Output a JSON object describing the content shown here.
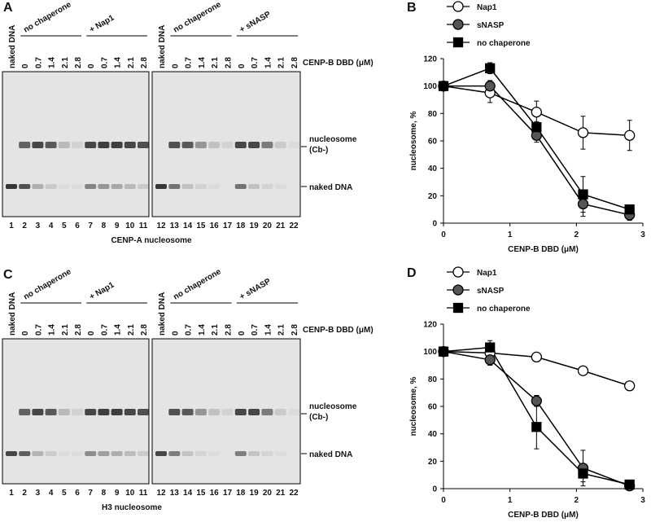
{
  "gels": [
    {
      "panel_label": "A",
      "lane_headers": [
        "naked DNA",
        "0",
        "0.7",
        "1.4",
        "2.1",
        "2.8",
        "0",
        "0.7",
        "1.4",
        "2.1",
        "2.8",
        "naked DNA",
        "0",
        "0.7",
        "1.4",
        "2.1",
        "2.8",
        "0",
        "0.7",
        "1.4",
        "2.1",
        "2.8"
      ],
      "groups": [
        "no chaperone",
        "+ Nap1",
        "no chaperone",
        "+ sNASP"
      ],
      "conc_label": "CENP-B DBD (μM)",
      "band_labels": [
        "nucleosome",
        "(Cb-)",
        "naked DNA"
      ],
      "lane_numbers": [
        1,
        2,
        3,
        4,
        5,
        6,
        7,
        8,
        9,
        10,
        11,
        12,
        13,
        14,
        15,
        16,
        17,
        18,
        19,
        20,
        21,
        22
      ],
      "caption": "CENP-A nucleosome"
    },
    {
      "panel_label": "C",
      "lane_headers": [
        "naked DNA",
        "0",
        "0.7",
        "1.4",
        "2.1",
        "2.8",
        "0",
        "0.7",
        "1.4",
        "2.1",
        "2.8",
        "naked DNA",
        "0",
        "0.7",
        "1.4",
        "2.1",
        "2.8",
        "0",
        "0.7",
        "1.4",
        "2.1",
        "2.8"
      ],
      "groups": [
        "no chaperone",
        "+ Nap1",
        "no chaperone",
        "+ sNASP"
      ],
      "conc_label": "CENP-B DBD (μM)",
      "band_labels": [
        "nucleosome",
        "(Cb-)",
        "naked DNA"
      ],
      "lane_numbers": [
        1,
        2,
        3,
        4,
        5,
        6,
        7,
        8,
        9,
        10,
        11,
        12,
        13,
        14,
        15,
        16,
        17,
        18,
        19,
        20,
        21,
        22
      ],
      "caption": "H3 nucleosome"
    }
  ],
  "chart_data": [
    {
      "type": "line",
      "panel_label": "B",
      "x_label": "CENP-B DBD (μM)",
      "y_label": "nucleosome, %",
      "x": [
        0,
        0.7,
        1.4,
        2.1,
        2.8
      ],
      "xlim": [
        0,
        3
      ],
      "xticks": [
        0,
        1,
        2,
        3
      ],
      "ylim": [
        0,
        120
      ],
      "yticks": [
        0,
        20,
        40,
        60,
        80,
        100,
        120
      ],
      "series": [
        {
          "name": "Nap1",
          "color": "#ffffff",
          "marker": "circle",
          "values": [
            100,
            95,
            81,
            66,
            64
          ],
          "errors": [
            2,
            7,
            8,
            12,
            11
          ]
        },
        {
          "name": "sNASP",
          "color": "#555555",
          "marker": "circle",
          "values": [
            100,
            100,
            64,
            14,
            6
          ],
          "errors": [
            2,
            4,
            5,
            9,
            4
          ]
        },
        {
          "name": "no chaperone",
          "color": "#000000",
          "marker": "square",
          "values": [
            100,
            113,
            70,
            21,
            10
          ],
          "errors": [
            2,
            4,
            4,
            13,
            3
          ]
        }
      ]
    },
    {
      "type": "line",
      "panel_label": "D",
      "x_label": "CENP-B DBD (μM)",
      "y_label": "nucleosome, %",
      "x": [
        0,
        0.7,
        1.4,
        2.1,
        2.8
      ],
      "xlim": [
        0,
        3
      ],
      "xticks": [
        0,
        1,
        2,
        3
      ],
      "ylim": [
        0,
        120
      ],
      "yticks": [
        0,
        20,
        40,
        60,
        80,
        100,
        120
      ],
      "series": [
        {
          "name": "Nap1",
          "color": "#ffffff",
          "marker": "circle",
          "values": [
            100,
            99,
            96,
            86,
            75
          ],
          "errors": [
            2,
            3,
            3,
            3,
            3
          ]
        },
        {
          "name": "sNASP",
          "color": "#555555",
          "marker": "circle",
          "values": [
            100,
            94,
            64,
            15,
            2
          ],
          "errors": [
            2,
            4,
            4,
            13,
            1
          ]
        },
        {
          "name": "no chaperone",
          "color": "#000000",
          "marker": "square",
          "values": [
            100,
            103,
            45,
            11,
            3
          ],
          "errors": [
            2,
            5,
            16,
            6,
            1
          ]
        }
      ]
    }
  ]
}
